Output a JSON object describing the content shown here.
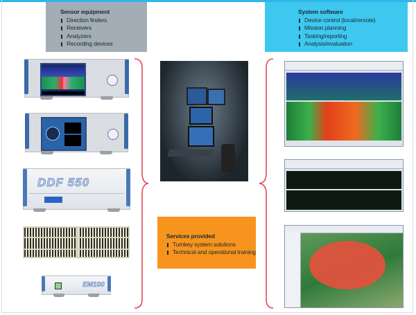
{
  "sensor_equipment": {
    "title": "Sensor equipment",
    "items": [
      "Direction finders",
      "Receivers",
      "Analyzers",
      "Recording devices"
    ]
  },
  "system_software": {
    "title": "System software",
    "items": [
      "Device control (local/remote)",
      "Mission planning",
      "Tasking/reporting",
      "Analysis/evaluation"
    ]
  },
  "services": {
    "title": "Services provided",
    "items": [
      "Turnkey system solutions",
      "Technical and operational training"
    ]
  },
  "device_logos": {
    "df": "DDF 550",
    "receiver": "EM100"
  },
  "colors": {
    "sensor_box": "#a3adb5",
    "software_box": "#3ec8f0",
    "services_box": "#f7941d",
    "brace": "#e8455f",
    "top_line": "#2fb6e8"
  }
}
